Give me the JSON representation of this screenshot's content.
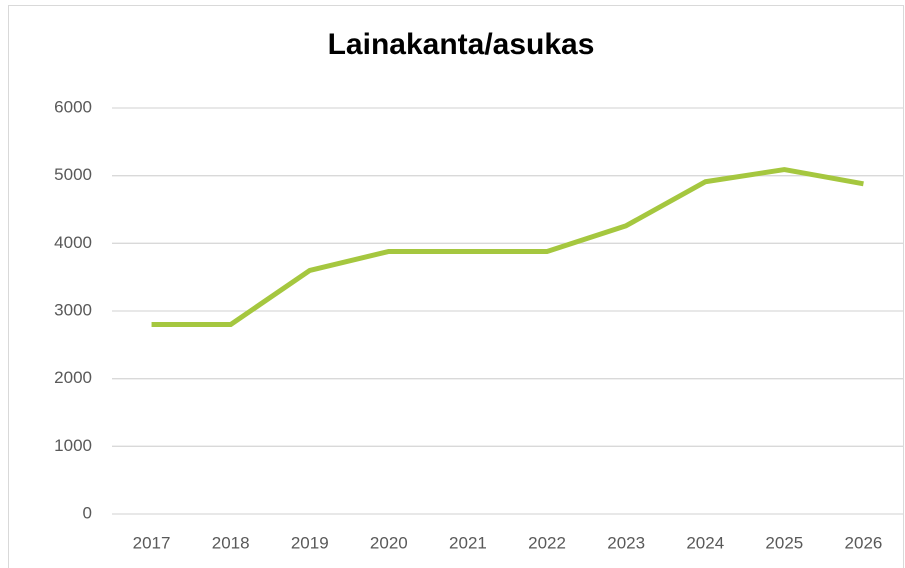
{
  "chart_data": {
    "type": "line",
    "title": "Lainakanta/asukas",
    "categories": [
      "2017",
      "2018",
      "2019",
      "2020",
      "2021",
      "2022",
      "2023",
      "2024",
      "2025",
      "2026"
    ],
    "values": [
      2800,
      2800,
      3600,
      3880,
      3880,
      3880,
      4260,
      4910,
      5090,
      4880
    ],
    "color": "#a5c73f",
    "ylim": [
      0,
      6000
    ],
    "yticks": [
      0,
      1000,
      2000,
      3000,
      4000,
      5000,
      6000
    ],
    "grid": true
  }
}
